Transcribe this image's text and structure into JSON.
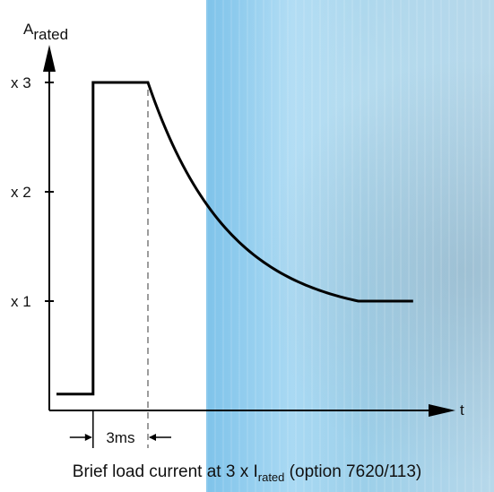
{
  "chart_data": {
    "type": "line",
    "ylabel_main": "A",
    "ylabel_sub": "rated",
    "xlabel": "t",
    "y_ticks": [
      {
        "value": 1,
        "label": "x 1"
      },
      {
        "value": 2,
        "label": "x 2"
      },
      {
        "value": 3,
        "label": "x 3"
      }
    ],
    "annotation": "3ms",
    "series": [
      {
        "segments": [
          {
            "kind": "flat",
            "from": 0.0,
            "to": 0.4,
            "y": 0.15
          },
          {
            "kind": "step_up",
            "at": 0.4,
            "y": 3
          },
          {
            "kind": "flat",
            "from": 0.4,
            "to": 1.0,
            "y": 3
          },
          {
            "kind": "decay",
            "from": 1.0,
            "to": 3.3,
            "y_start": 3,
            "y_end": 1
          },
          {
            "kind": "flat",
            "from": 3.3,
            "to": 3.9,
            "y": 1
          }
        ]
      }
    ]
  },
  "caption": {
    "before": "Brief load current at 3 x I",
    "sub": "rated",
    "after": " (option 7620/113)"
  }
}
